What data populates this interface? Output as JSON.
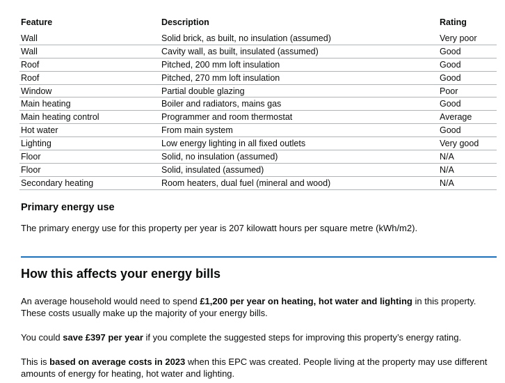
{
  "table": {
    "headers": [
      "Feature",
      "Description",
      "Rating"
    ],
    "rows": [
      [
        "Wall",
        "Solid brick, as built, no insulation (assumed)",
        "Very poor"
      ],
      [
        "Wall",
        "Cavity wall, as built, insulated (assumed)",
        "Good"
      ],
      [
        "Roof",
        "Pitched, 200 mm loft insulation",
        "Good"
      ],
      [
        "Roof",
        "Pitched, 270 mm loft insulation",
        "Good"
      ],
      [
        "Window",
        "Partial double glazing",
        "Poor"
      ],
      [
        "Main heating",
        "Boiler and radiators, mains gas",
        "Good"
      ],
      [
        "Main heating control",
        "Programmer and room thermostat",
        "Average"
      ],
      [
        "Hot water",
        "From main system",
        "Good"
      ],
      [
        "Lighting",
        "Low energy lighting in all fixed outlets",
        "Very good"
      ],
      [
        "Floor",
        "Solid, no insulation (assumed)",
        "N/A"
      ],
      [
        "Floor",
        "Solid, insulated (assumed)",
        "N/A"
      ],
      [
        "Secondary heating",
        "Room heaters, dual fuel (mineral and wood)",
        "N/A"
      ]
    ]
  },
  "primary": {
    "heading": "Primary energy use",
    "text": "The primary energy use for this property per year is 207 kilowatt hours per square metre (kWh/m2)."
  },
  "bills": {
    "heading": "How this affects your energy bills",
    "paragraphs": [
      [
        {
          "text": "An average household would need to spend ",
          "bold": false
        },
        {
          "text": "£1,200 per year on heating, hot water and lighting",
          "bold": true
        },
        {
          "text": " in this property. These costs usually make up the majority of your energy bills.",
          "bold": false
        }
      ],
      [
        {
          "text": "You could ",
          "bold": false
        },
        {
          "text": "save £397 per year",
          "bold": true
        },
        {
          "text": " if you complete the suggested steps for improving this property’s energy rating.",
          "bold": false
        }
      ],
      [
        {
          "text": "This is ",
          "bold": false
        },
        {
          "text": "based on average costs in 2023",
          "bold": true
        },
        {
          "text": " when this EPC was created. People living at the property may use different amounts of energy for heating, hot water and lighting.",
          "bold": false
        }
      ]
    ]
  }
}
